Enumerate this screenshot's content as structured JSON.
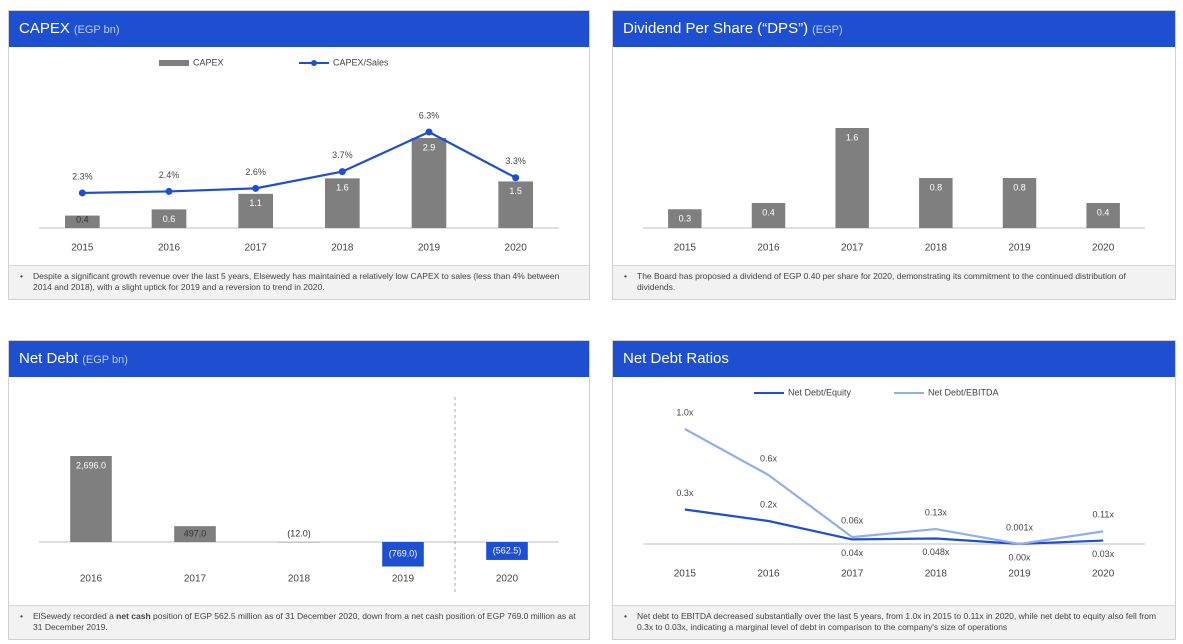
{
  "chart_data": [
    {
      "type": "bar",
      "title": "CAPEX",
      "subtitle": "(EGP bn)",
      "categories": [
        "2015",
        "2016",
        "2017",
        "2018",
        "2019",
        "2020"
      ],
      "series": [
        {
          "name": "CAPEX",
          "color": "#7f7f7f",
          "values": [
            0.4,
            0.6,
            1.1,
            1.6,
            2.9,
            1.5
          ]
        },
        {
          "name": "CAPEX/Sales",
          "color": "#1f4fd1",
          "axis": "y2",
          "values": [
            2.3,
            2.4,
            2.6,
            3.7,
            6.3,
            3.3
          ],
          "value_labels": [
            "2.3%",
            "2.4%",
            "2.6%",
            "3.7%",
            "6.3%",
            "3.3%"
          ]
        }
      ],
      "note": "Despite a significant growth revenue over the last 5 years, Elsewedy has maintained a relatively low CAPEX to sales (less than 4% between 2014 and 2018), with a slight uptick for 2019 and a reversion to trend in 2020."
    },
    {
      "type": "bar",
      "title": "Dividend Per Share (“DPS”)",
      "subtitle": "(EGP)",
      "categories": [
        "2015",
        "2016",
        "2017",
        "2018",
        "2019",
        "2020"
      ],
      "values": [
        0.3,
        0.4,
        1.6,
        0.8,
        0.8,
        0.4
      ],
      "color": "#7f7f7f",
      "note": "The Board has proposed a dividend of EGP 0.40 per share for 2020, demonstrating its commitment to the continued distribution of dividends."
    },
    {
      "type": "bar",
      "title": "Net Debt",
      "subtitle": "(EGP bn)",
      "categories": [
        "2016",
        "2017",
        "2018",
        "2019",
        "2020"
      ],
      "values": [
        2696.0,
        497.0,
        -12.0,
        -769.0,
        -562.5
      ],
      "value_labels": [
        "2,696.0",
        "497.0",
        "(12.0)",
        "(769.0)",
        "(562.5)"
      ],
      "colors": [
        "#7f7f7f",
        "#7f7f7f",
        "#7f7f7f",
        "#1f4fd1",
        "#1f4fd1"
      ],
      "note_parts": [
        "ElSewedy recorded a ",
        "net cash",
        " position of EGP 562.5 million as of 31 December 2020, down from a net cash position of EGP 769.0 million as at 31 December 2019."
      ]
    },
    {
      "type": "line",
      "title": "Net Debt Ratios",
      "categories": [
        "2015",
        "2016",
        "2017",
        "2018",
        "2019",
        "2020"
      ],
      "series": [
        {
          "name": "Net Debt/Equity",
          "color": "#1f4fd1",
          "values": [
            0.3,
            0.2,
            0.04,
            0.048,
            0.001,
            0.03
          ],
          "value_labels": [
            "0.3x",
            "0.2x",
            "0.04x",
            "0.048x",
            "0.001x",
            "0.03x"
          ]
        },
        {
          "name": "Net Debt/EBITDA",
          "color": "#8fb0ea",
          "values": [
            1.0,
            0.6,
            0.06,
            0.13,
            0.0,
            0.11
          ],
          "value_labels": [
            "1.0x",
            "0.6x",
            "0.06x",
            "0.13x",
            "0.00x",
            "0.11x"
          ]
        }
      ],
      "note": "Net debt to EBITDA decreased substantially over the last 5 years, from 1.0x in 2015 to 0.11x in 2020, while net debt to equity also fell from 0.3x to 0.03x, indicating a marginal level of debt in comparison to the company's size of operations"
    }
  ]
}
